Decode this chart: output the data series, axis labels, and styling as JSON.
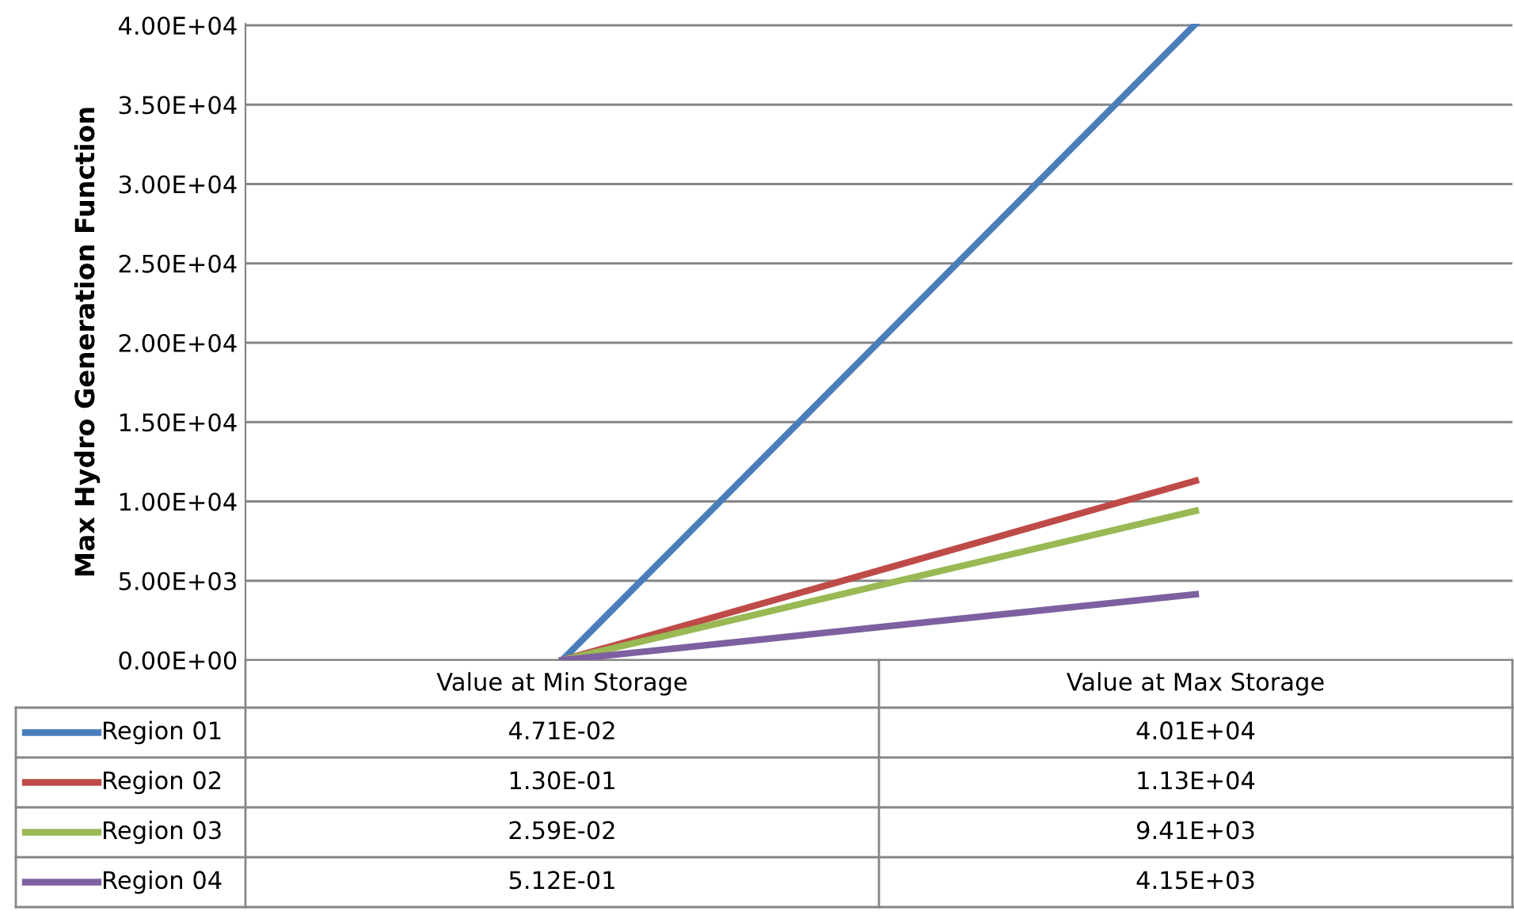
{
  "chart_data": {
    "type": "line",
    "ylabel": "Max Hydro Generation Function",
    "categories": [
      "Value at Min Storage",
      "Value at Max Storage"
    ],
    "series": [
      {
        "name": "Region 01",
        "color": "#4a7ebb",
        "values": [
          0.0471,
          40100
        ],
        "value_labels": [
          "4.71E-02",
          "4.01E+04"
        ]
      },
      {
        "name": "Region 02",
        "color": "#be4b48",
        "values": [
          0.13,
          11300
        ],
        "value_labels": [
          "1.30E-01",
          "1.13E+04"
        ]
      },
      {
        "name": "Region 03",
        "color": "#98b954",
        "values": [
          0.0259,
          9410
        ],
        "value_labels": [
          "2.59E-02",
          "9.41E+03"
        ]
      },
      {
        "name": "Region 04",
        "color": "#7d60a0",
        "values": [
          0.512,
          4150
        ],
        "value_labels": [
          "5.12E-01",
          "4.15E+03"
        ]
      }
    ],
    "ylim": [
      0,
      40100
    ],
    "legend": "bottom",
    "yticks": [
      {
        "value": 0,
        "label": "0.00E+00"
      },
      {
        "value": 5000,
        "label": "5.00E+03"
      },
      {
        "value": 10000,
        "label": "1.00E+04"
      },
      {
        "value": 15000,
        "label": "1.50E+04"
      },
      {
        "value": 20000,
        "label": "2.00E+04"
      },
      {
        "value": 25000,
        "label": "2.50E+04"
      },
      {
        "value": 30000,
        "label": "3.00E+04"
      },
      {
        "value": 35000,
        "label": "3.50E+04"
      },
      {
        "value": 40000,
        "label": "4.00E+04"
      }
    ],
    "grid": "y",
    "marker": "none",
    "line_style": "solid"
  }
}
